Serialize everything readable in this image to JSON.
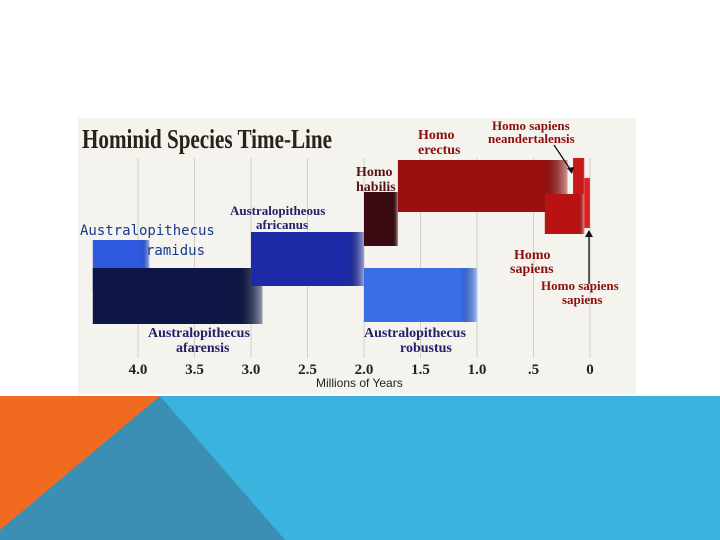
{
  "slide": {
    "colors": {
      "background": "#ffffff",
      "footer_blue": "#3ab3df",
      "footer_teal": "#3b8fb4",
      "footer_orange": "#f06a1f"
    }
  },
  "chart_data": {
    "type": "bar",
    "title": "Hominid Species Time-Line",
    "xlabel": "Millions of Years",
    "ylabel": "",
    "xlim": [
      4.4,
      -0.1
    ],
    "x_direction": "reversed",
    "x_ticks": [
      4.0,
      3.5,
      3.0,
      2.5,
      2.0,
      1.5,
      1.0,
      0.5,
      0
    ],
    "x_tick_labels": [
      "4.0",
      "3.5",
      "3.0",
      "2.5",
      "2.0",
      "1.5",
      "1.0",
      ".5",
      "0"
    ],
    "grid": true,
    "series": [
      {
        "name": "Australopithecus ramidus",
        "start": 4.4,
        "end": 3.9,
        "color": "#2f5ae0"
      },
      {
        "name": "Australopithecus afarensis",
        "start": 4.4,
        "end": 2.9,
        "color": "#0d1645"
      },
      {
        "name": "Australopitheous africanus",
        "start": 3.0,
        "end": 2.0,
        "color": "#1d2aa8"
      },
      {
        "name": "Homo habilis",
        "start": 2.0,
        "end": 1.7,
        "color": "#3a0a12"
      },
      {
        "name": "Australopithecus robustus",
        "start": 2.0,
        "end": 1.0,
        "color": "#3a6ee6"
      },
      {
        "name": "Homo erectus",
        "start": 1.7,
        "end": 0.2,
        "color": "#9a1010"
      },
      {
        "name": "Homo sapiens",
        "start": 0.4,
        "end": 0.05,
        "color": "#b81212"
      },
      {
        "name": "Homo sapiens neandertalensis",
        "start": 0.15,
        "end": 0.05,
        "color": "#c8181a"
      },
      {
        "name": "Homo sapiens sapiens",
        "start": 0.05,
        "end": 0.0,
        "color": "#e02020"
      }
    ],
    "labels": {
      "ramidus_line1": "Australopithecus",
      "ramidus_line2": "ramidus",
      "africanus_line1": "Australopitheous",
      "africanus_line2": "africanus",
      "habilis_line1": "Homo",
      "habilis_line2": "habilis",
      "erectus_line1": "Homo",
      "erectus_line2": "erectus",
      "neander_line1": "Homo sapiens",
      "neander_line2": "neandertalensis",
      "sapiens_line1": "Homo",
      "sapiens_line2": "sapiens",
      "sapsap_line1": "Homo sapiens",
      "sapsap_line2": "sapiens",
      "afarensis_line1": "Australopithecus",
      "afarensis_line2": "afarensis",
      "robustus_line1": "Australopithecus",
      "robustus_line2": "robustus"
    }
  }
}
